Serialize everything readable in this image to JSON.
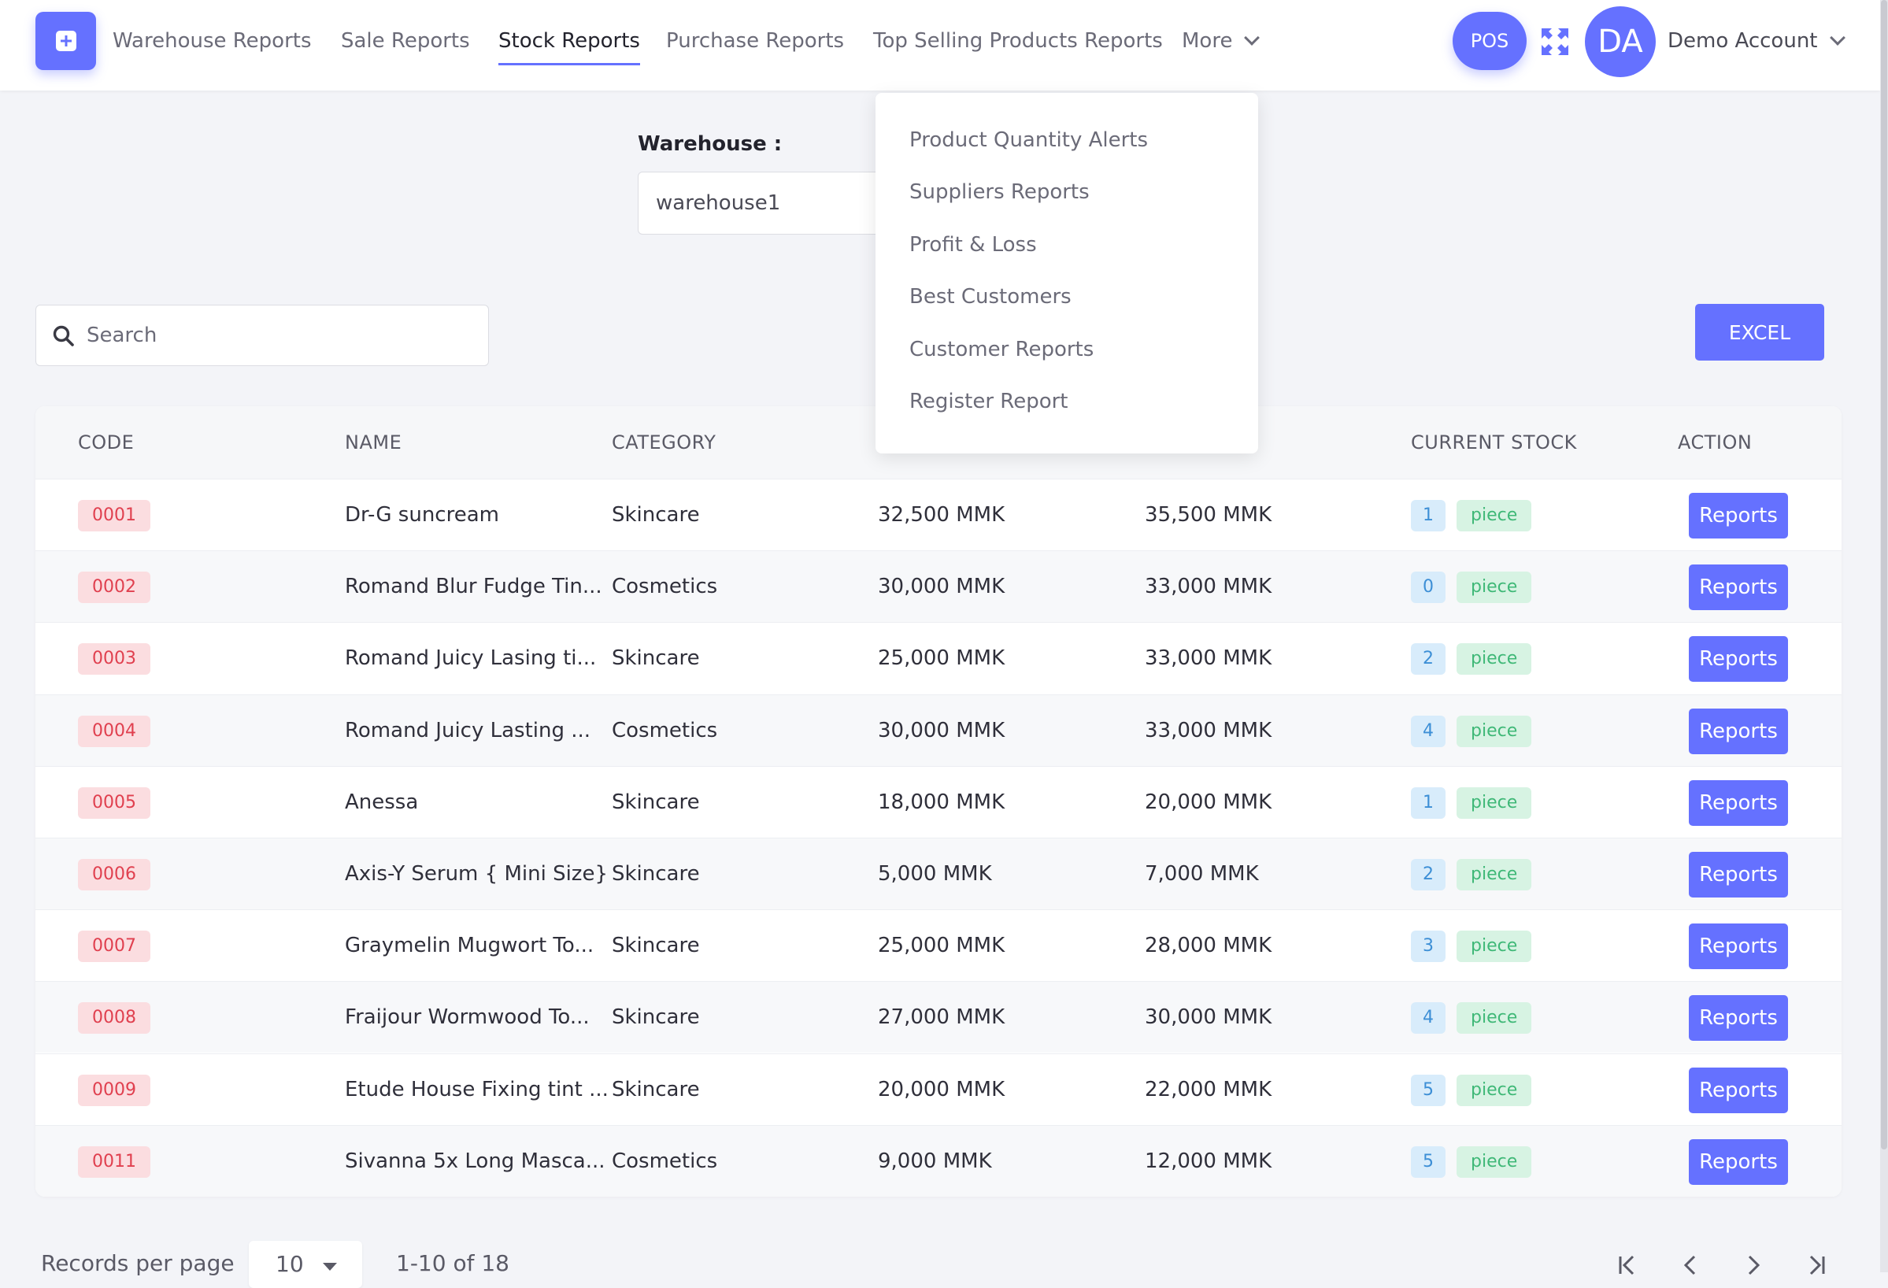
{
  "nav": {
    "tabs": [
      {
        "label": "Warehouse Reports"
      },
      {
        "label": "Sale Reports"
      },
      {
        "label": "Stock Reports"
      },
      {
        "label": "Purchase Reports"
      },
      {
        "label": "Top Selling Products Reports"
      }
    ],
    "more_label": "More",
    "active_tab": "Stock Reports",
    "pos_label": "POS",
    "avatar_initials": "DA",
    "account_name": "Demo Account",
    "accent_color": "#6571ff"
  },
  "dropdown": {
    "items": [
      {
        "label": "Product Quantity Alerts"
      },
      {
        "label": "Suppliers Reports"
      },
      {
        "label": "Profit & Loss"
      },
      {
        "label": "Best Customers"
      },
      {
        "label": "Customer Reports"
      },
      {
        "label": "Register Report"
      }
    ]
  },
  "filter": {
    "warehouse_label": "Warehouse :",
    "warehouse_value": "warehouse1"
  },
  "search": {
    "placeholder": "Search",
    "value": ""
  },
  "excel_label": "EXCEL",
  "table": {
    "columns": {
      "code": "CODE",
      "name": "NAME",
      "category": "CATEGORY",
      "current_stock": "CURRENT STOCK",
      "action": "ACTION"
    },
    "rows": [
      {
        "code": "0001",
        "name": "Dr-G suncream",
        "category": "Skincare",
        "cost": "32,500 MMK",
        "price": "35,500 MMK",
        "qty": "1",
        "unit": "piece",
        "action": "Reports"
      },
      {
        "code": "0002",
        "name": "Romand Blur Fudge Tin...",
        "category": "Cosmetics",
        "cost": "30,000 MMK",
        "price": "33,000 MMK",
        "qty": "0",
        "unit": "piece",
        "action": "Reports"
      },
      {
        "code": "0003",
        "name": "Romand Juicy Lasing ti...",
        "category": "Skincare",
        "cost": "25,000 MMK",
        "price": "33,000 MMK",
        "qty": "2",
        "unit": "piece",
        "action": "Reports"
      },
      {
        "code": "0004",
        "name": "Romand Juicy Lasting ...",
        "category": "Cosmetics",
        "cost": "30,000 MMK",
        "price": "33,000 MMK",
        "qty": "4",
        "unit": "piece",
        "action": "Reports"
      },
      {
        "code": "0005",
        "name": "Anessa",
        "category": "Skincare",
        "cost": "18,000 MMK",
        "price": "20,000 MMK",
        "qty": "1",
        "unit": "piece",
        "action": "Reports"
      },
      {
        "code": "0006",
        "name": "Axis-Y Serum { Mini Size}",
        "category": "Skincare",
        "cost": "5,000 MMK",
        "price": "7,000 MMK",
        "qty": "2",
        "unit": "piece",
        "action": "Reports"
      },
      {
        "code": "0007",
        "name": "Graymelin Mugwort To...",
        "category": "Skincare",
        "cost": "25,000 MMK",
        "price": "28,000 MMK",
        "qty": "3",
        "unit": "piece",
        "action": "Reports"
      },
      {
        "code": "0008",
        "name": "Fraijour Wormwood To...",
        "category": "Skincare",
        "cost": "27,000 MMK",
        "price": "30,000 MMK",
        "qty": "4",
        "unit": "piece",
        "action": "Reports"
      },
      {
        "code": "0009",
        "name": "Etude House Fixing tint ...",
        "category": "Skincare",
        "cost": "20,000 MMK",
        "price": "22,000 MMK",
        "qty": "5",
        "unit": "piece",
        "action": "Reports"
      },
      {
        "code": "0011",
        "name": "Sivanna 5x Long Masca...",
        "category": "Cosmetics",
        "cost": "9,000 MMK",
        "price": "12,000 MMK",
        "qty": "5",
        "unit": "piece",
        "action": "Reports"
      }
    ]
  },
  "pagination": {
    "records_per_page_label": "Records per page",
    "per_page": "10",
    "range": "1-10 of 18"
  }
}
